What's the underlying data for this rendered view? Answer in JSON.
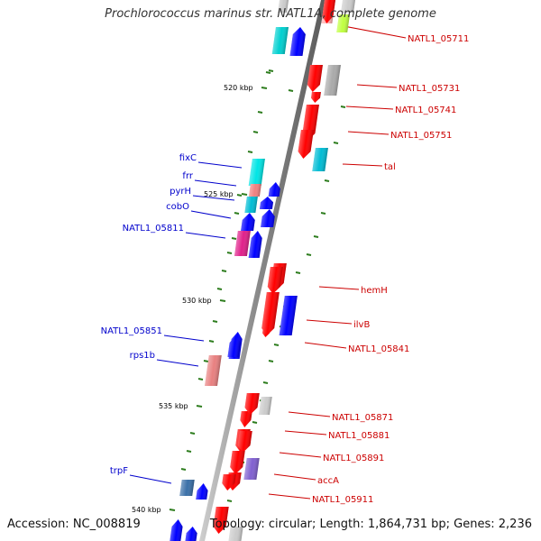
{
  "title": "Prochlorococcus marinus str. NATL1A, complete genome",
  "footer": {
    "accession": "Accession: NC_008819",
    "topology": "Topology: circular; Length: 1,864,731 bp; Genes: 2,236"
  },
  "colors": {
    "plus_label": "#0000cc",
    "minus_label": "#cc0000",
    "tick": "#2e7d1e",
    "backbone": "#777777"
  },
  "tick_labels": [
    "520 kbp",
    "525 kbp",
    "530 kbp",
    "535 kbp",
    "540 kbp"
  ],
  "genes_minus": [
    {
      "label": "NATL1_05711",
      "color": "#ff0000"
    },
    {
      "label": "NATL1_05731",
      "color": "#ff0000"
    },
    {
      "label": "NATL1_05741",
      "color": "#ff0000"
    },
    {
      "label": "NATL1_05751",
      "color": "#ff0000"
    },
    {
      "label": "tal",
      "color": "#00bcd4"
    },
    {
      "label": "hemH",
      "color": "#ff0000"
    },
    {
      "label": "ilvB",
      "color": "#ff0000"
    },
    {
      "label": "NATL1_05841",
      "color": "#0000ff"
    },
    {
      "label": "NATL1_05871",
      "color": "#ff0000"
    },
    {
      "label": "NATL1_05881",
      "color": "#ff0000"
    },
    {
      "label": "NATL1_05891",
      "color": "#ff0000"
    },
    {
      "label": "accA",
      "color": "#8060d0"
    },
    {
      "label": "NATL1_05911",
      "color": "#ff0000"
    }
  ],
  "genes_plus": [
    {
      "label": "fixC",
      "color": "#00e5e5"
    },
    {
      "label": "frr",
      "color": "#f08080"
    },
    {
      "label": "pyrH",
      "color": "#00bcd4"
    },
    {
      "label": "cobO",
      "color": "#0000ff"
    },
    {
      "label": "NATL1_05811",
      "color": "#e0208a"
    },
    {
      "label": "NATL1_05851",
      "color": "#0000ff"
    },
    {
      "label": "rps1b",
      "color": "#e88080"
    },
    {
      "label": "trpF",
      "color": "#3a70a8"
    }
  ]
}
